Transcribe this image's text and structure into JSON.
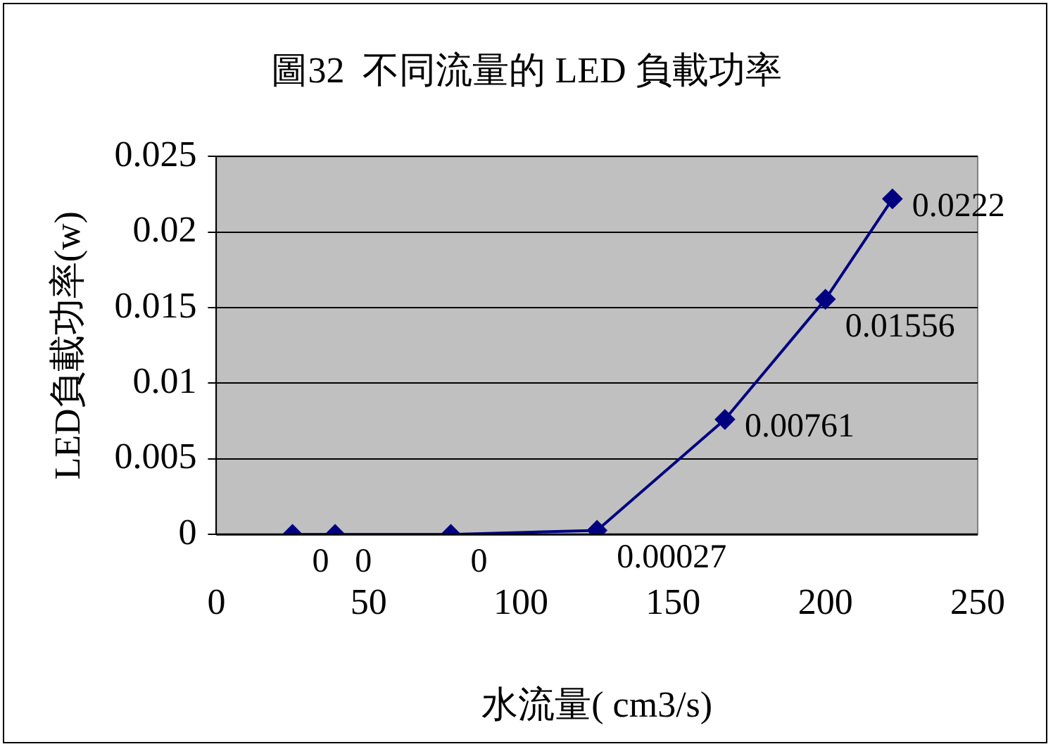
{
  "chart_data": {
    "type": "line",
    "title": "圖32  不同流量的 LED 負載功率",
    "xlabel": "水流量( cm3/s)",
    "ylabel": "LED負載功率(w)",
    "x": [
      25,
      39,
      77,
      125,
      167,
      200,
      222
    ],
    "series": [
      {
        "color": "#000080",
        "values": [
          0,
          0,
          0,
          0.00027,
          0.00761,
          0.01556,
          0.0222
        ]
      }
    ],
    "xlim": [
      0,
      250
    ],
    "xticks": [
      0,
      50,
      100,
      150,
      200,
      250
    ],
    "ylim": [
      0,
      0.025
    ],
    "yticks": [
      0,
      0.005,
      0.01,
      0.015,
      0.02,
      0.025
    ],
    "grid": "y",
    "legend": false,
    "marker": "diamond",
    "line_style": "solid",
    "data_labels": true
  }
}
